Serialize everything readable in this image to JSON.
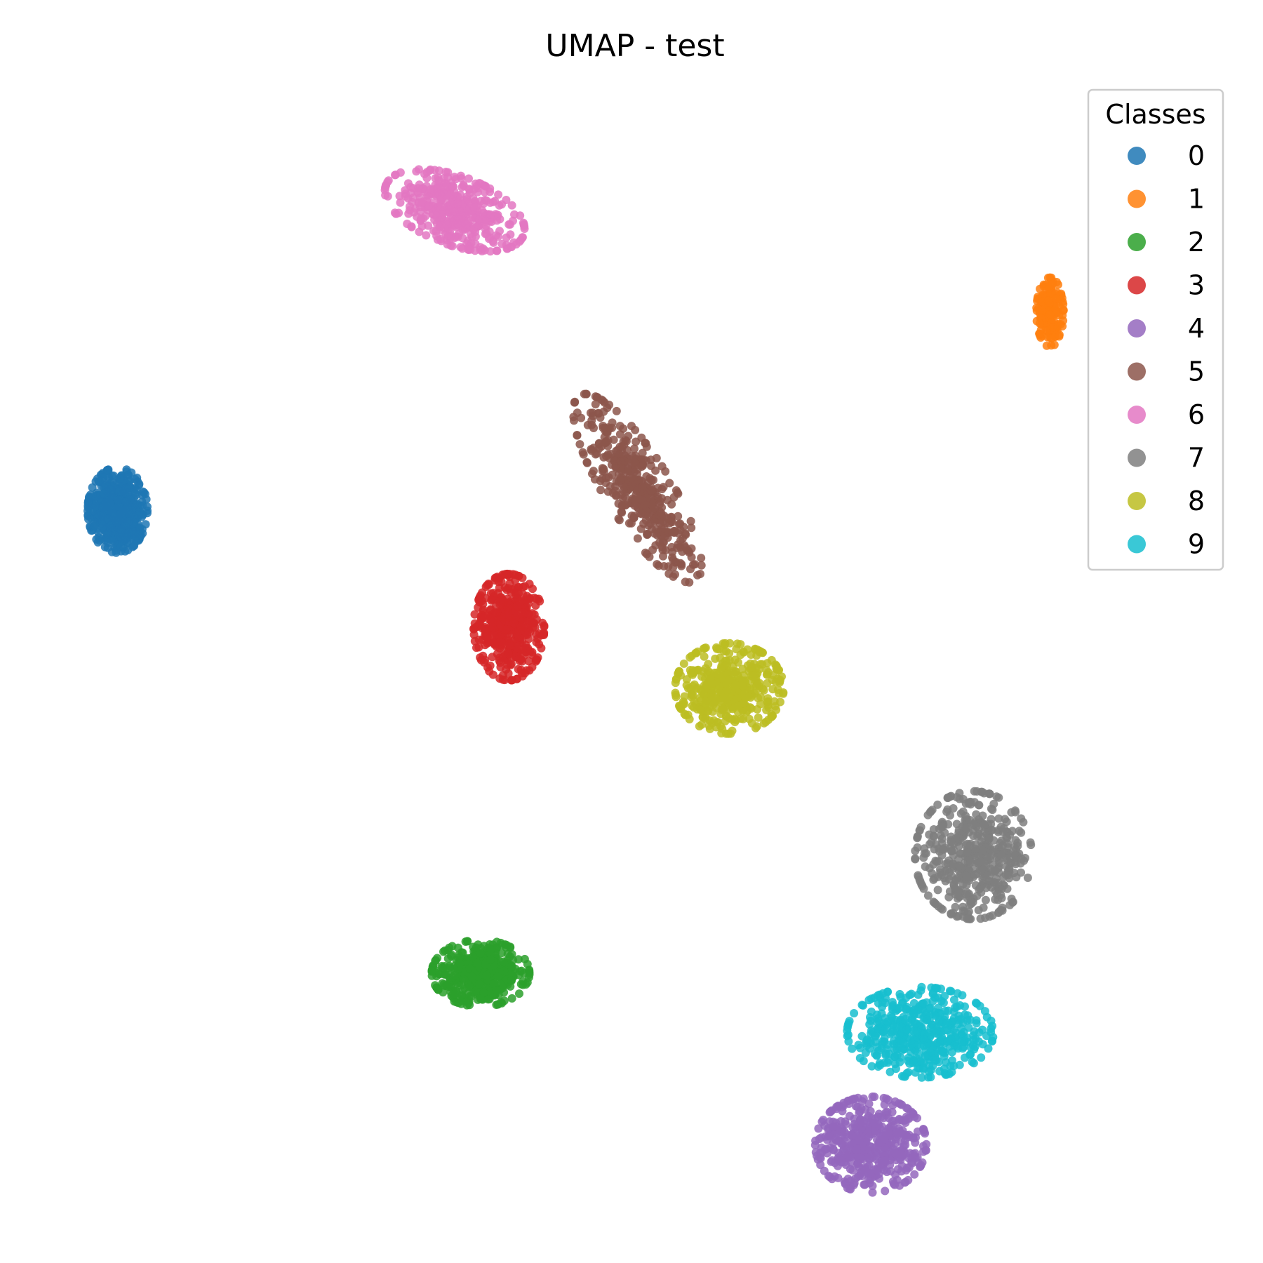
{
  "chart_data": {
    "type": "scatter",
    "title": "UMAP - test",
    "xlabel": "",
    "ylabel": "",
    "axes_visible": false,
    "grid": false,
    "xlim": [
      0,
      100
    ],
    "ylim": [
      0,
      100
    ],
    "legend": {
      "title": "Classes",
      "placement": "top-right",
      "marker": "circle"
    },
    "series": [
      {
        "name": "0",
        "color": "#1f77b4",
        "clusters": [
          {
            "x": 6.4,
            "y": 62.6,
            "rx": 2.2,
            "ry": 3.2,
            "n": 500
          }
        ]
      },
      {
        "name": "1",
        "color": "#ff7f0e",
        "clusters": [
          {
            "x": 85.5,
            "y": 79.7,
            "rx": 1.0,
            "ry": 2.6,
            "n": 160
          }
        ]
      },
      {
        "name": "2",
        "color": "#2ca02c",
        "clusters": [
          {
            "x": 37.2,
            "y": 22.6,
            "rx": 3.6,
            "ry": 2.5,
            "n": 450
          }
        ]
      },
      {
        "name": "3",
        "color": "#d62728",
        "clusters": [
          {
            "x": 39.6,
            "y": 52.5,
            "rx": 2.6,
            "ry": 4.0,
            "n": 450
          }
        ]
      },
      {
        "name": "4",
        "color": "#9467bd",
        "clusters": [
          {
            "x": 70.3,
            "y": 7.8,
            "rx": 4.1,
            "ry": 3.6,
            "n": 480
          }
        ]
      },
      {
        "name": "5",
        "color": "#8c564b",
        "clusters": [
          {
            "x": 50.5,
            "y": 64.5,
            "rx": 2.4,
            "ry": 8.2,
            "rot": -32,
            "n": 420
          }
        ]
      },
      {
        "name": "6",
        "color": "#e377c2",
        "clusters": [
          {
            "x": 35.0,
            "y": 88.5,
            "rx": 5.4,
            "ry": 2.6,
            "rot": 20,
            "n": 420
          }
        ]
      },
      {
        "name": "7",
        "color": "#7f7f7f",
        "clusters": [
          {
            "x": 79.0,
            "y": 32.8,
            "rx": 4.3,
            "ry": 4.8,
            "n": 460
          }
        ]
      },
      {
        "name": "8",
        "color": "#bcbd22",
        "clusters": [
          {
            "x": 58.3,
            "y": 47.2,
            "rx": 4.0,
            "ry": 3.4,
            "n": 430
          }
        ]
      },
      {
        "name": "9",
        "color": "#17becf",
        "clusters": [
          {
            "x": 74.5,
            "y": 17.5,
            "rx": 5.4,
            "ry": 3.4,
            "n": 460
          }
        ]
      }
    ]
  }
}
